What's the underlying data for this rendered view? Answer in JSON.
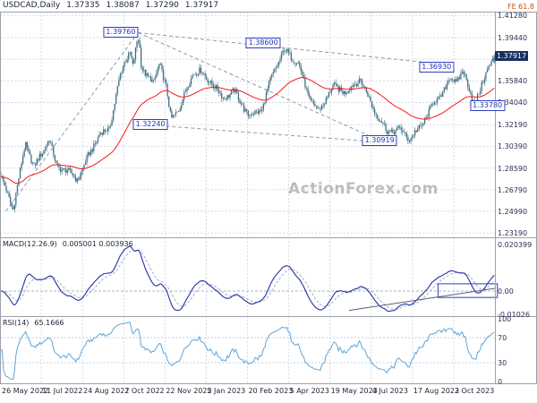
{
  "header": {
    "symbol": "USDCAD,Daily",
    "open": "1.37335",
    "high": "1.38087",
    "low": "1.37290",
    "close": "1.37917"
  },
  "watermark": "ActionForex.com",
  "colors": {
    "candle": "#3f6e80",
    "ma": "#f51818",
    "macd_line": "#2330a8",
    "macd_signal": "#a8b0bd",
    "rsi_line": "#5ea5d8",
    "grid": "#d6dae4",
    "zero_line": "#aab4c8",
    "rsi_level": "#c2cce0",
    "trendline": "#8e9aaa",
    "annotation": "#2e3fbf",
    "axis_text": "#2a2f55",
    "price_box_bg": "#16305f",
    "fib_label_color": "#c45500",
    "separator": "#9aa0ab",
    "watermark_color": "#bcbcbc"
  },
  "chart_data": {
    "type": "candlestick",
    "symbol": "USDCAD",
    "timeframe": "Daily",
    "candles": 356,
    "x_labels": [
      "26 May 2022",
      "11 Jul 2022",
      "24 Aug 2022",
      "7 Oct 2022",
      "22 Nov 2022",
      "5 Jan 2023",
      "20 Feb 2023",
      "5 Apr 2023",
      "19 May 2023",
      "4 Jul 2023",
      "17 Aug 2023",
      "2 Oct 2023"
    ],
    "price_panel": {
      "ylim": [
        1.229,
        1.416
      ],
      "y_ticks": [
        "1.41280",
        "1.39440",
        "1.35840",
        "1.34040",
        "1.32190",
        "1.30390",
        "1.28590",
        "1.26790",
        "1.24990",
        "1.23190"
      ],
      "hidden_tick": 1.3764,
      "current_price": "1.37917",
      "last_candle": {
        "open": 1.37335,
        "high": 1.38087,
        "low": 1.3729,
        "close": 1.37917
      },
      "ma": {
        "type": "EMA",
        "period": 55
      },
      "fib_label": "FE 61.8",
      "price_anchors": [
        [
          0.0,
          1.28
        ],
        [
          0.01,
          1.268
        ],
        [
          0.025,
          1.252
        ],
        [
          0.05,
          1.306
        ],
        [
          0.068,
          1.287
        ],
        [
          0.085,
          1.299
        ],
        [
          0.098,
          1.311
        ],
        [
          0.113,
          1.287
        ],
        [
          0.135,
          1.284
        ],
        [
          0.155,
          1.276
        ],
        [
          0.178,
          1.296
        ],
        [
          0.2,
          1.314
        ],
        [
          0.22,
          1.318
        ],
        [
          0.24,
          1.359
        ],
        [
          0.252,
          1.375
        ],
        [
          0.262,
          1.383
        ],
        [
          0.268,
          1.37
        ],
        [
          0.276,
          1.39
        ],
        [
          0.28,
          1.393
        ],
        [
          0.285,
          1.37
        ],
        [
          0.295,
          1.364
        ],
        [
          0.31,
          1.356
        ],
        [
          0.322,
          1.374
        ],
        [
          0.335,
          1.354
        ],
        [
          0.345,
          1.326
        ],
        [
          0.362,
          1.336
        ],
        [
          0.39,
          1.365
        ],
        [
          0.405,
          1.367
        ],
        [
          0.415,
          1.361
        ],
        [
          0.43,
          1.356
        ],
        [
          0.45,
          1.344
        ],
        [
          0.473,
          1.35
        ],
        [
          0.503,
          1.329
        ],
        [
          0.53,
          1.335
        ],
        [
          0.548,
          1.361
        ],
        [
          0.56,
          1.372
        ],
        [
          0.575,
          1.384
        ],
        [
          0.603,
          1.373
        ],
        [
          0.625,
          1.344
        ],
        [
          0.645,
          1.333
        ],
        [
          0.673,
          1.354
        ],
        [
          0.7,
          1.349
        ],
        [
          0.729,
          1.36
        ],
        [
          0.753,
          1.337
        ],
        [
          0.783,
          1.316
        ],
        [
          0.81,
          1.318
        ],
        [
          0.827,
          1.31
        ],
        [
          0.851,
          1.32
        ],
        [
          0.877,
          1.34
        ],
        [
          0.89,
          1.345
        ],
        [
          0.91,
          1.36
        ],
        [
          0.924,
          1.358
        ],
        [
          0.936,
          1.367
        ],
        [
          0.95,
          1.35
        ],
        [
          0.96,
          1.34
        ],
        [
          0.974,
          1.353
        ],
        [
          0.988,
          1.37
        ],
        [
          1.0,
          1.3792
        ]
      ],
      "annotations": [
        {
          "label": "1.39760",
          "f": 0.244,
          "price": 1.399
        },
        {
          "label": "1.38600",
          "f": 0.532,
          "price": 1.39
        },
        {
          "label": "1.36930",
          "f": 0.882,
          "price": 1.3697
        },
        {
          "label": "1.33780",
          "f": 0.985,
          "price": 1.3378
        },
        {
          "label": "1.32240",
          "f": 0.304,
          "price": 1.3224
        },
        {
          "label": "1.30919",
          "f": 0.767,
          "price": 1.309
        }
      ],
      "trendlines": [
        [
          [
            0.012,
            1.25
          ],
          [
            0.279,
            1.3985
          ]
        ],
        [
          [
            0.279,
            1.3985
          ],
          [
            0.878,
            1.373
          ]
        ],
        [
          [
            0.279,
            1.3985
          ],
          [
            0.777,
            1.307
          ]
        ],
        [
          [
            0.31,
            1.3215
          ],
          [
            0.8,
            1.3065
          ]
        ]
      ]
    },
    "macd_panel": {
      "label": "MACD(12.26.9)",
      "values": "0.005001 0.003936",
      "params": {
        "fast": 12,
        "slow": 26,
        "signal": 9
      },
      "ylim": [
        -0.0106,
        0.0232
      ],
      "y_ticks": [
        "0.020399",
        "0.00",
        "-0.01026"
      ],
      "trendline": [
        [
          0.705,
          -0.0085
        ],
        [
          1.0,
          0.0012
        ]
      ],
      "highlight_box": {
        "f0": 0.885,
        "f1": 1.005,
        "v_top": 0.0032,
        "v_bottom": -0.0028
      }
    },
    "rsi_panel": {
      "label": "RSI(14)",
      "value": "65.1666",
      "period": 14,
      "ylim": [
        -2.9,
        102.9
      ],
      "y_ticks": [
        "100",
        "70",
        "30",
        "0"
      ],
      "levels": [
        70,
        30
      ]
    }
  }
}
